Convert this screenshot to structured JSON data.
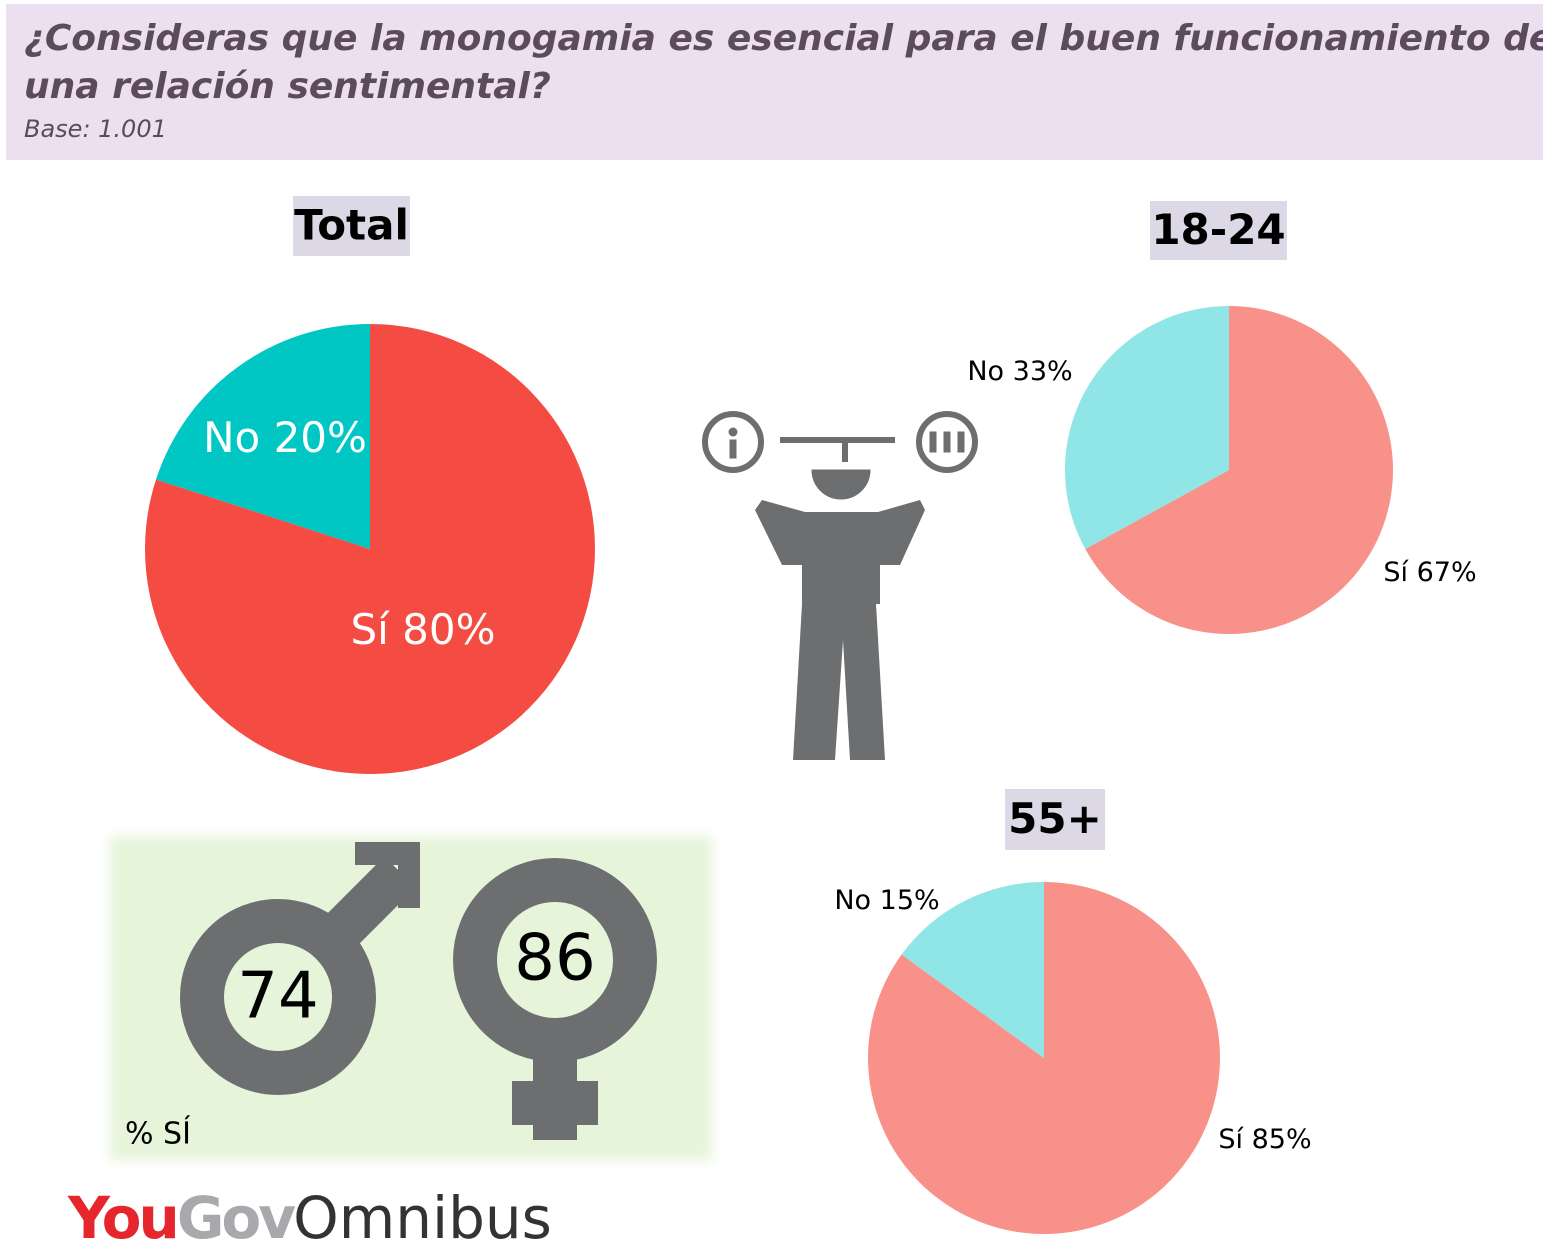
{
  "header": {
    "title_line1": "¿Consideras que la monogamia es esencial para el buen funcionamiento de",
    "title_line2": "una relación sentimental?",
    "subtitle": "Base: 1.001"
  },
  "chart_data": [
    {
      "type": "pie",
      "title": "Total",
      "categories": [
        "Sí",
        "No"
      ],
      "values": [
        80,
        20
      ],
      "value_labels": [
        "80%",
        "20%"
      ],
      "colors": [
        "#f44b42",
        "#00c6c4"
      ]
    },
    {
      "type": "pie",
      "title": "18-24",
      "categories": [
        "Sí",
        "No"
      ],
      "values": [
        67,
        33
      ],
      "value_labels": [
        "67%",
        "33%"
      ],
      "colors": [
        "#f7918a",
        "#90e6e6"
      ]
    },
    {
      "type": "pie",
      "title": "55+",
      "categories": [
        "Sí",
        "No"
      ],
      "values": [
        85,
        15
      ],
      "value_labels": [
        "85%",
        "15%"
      ],
      "colors": [
        "#f7918a",
        "#90e6e6"
      ]
    }
  ],
  "gender": {
    "label": "% SÍ",
    "men": 74,
    "women": 86
  },
  "logo": {
    "you": "You",
    "gov": "Gov",
    "omnibus": "Omnibus"
  }
}
